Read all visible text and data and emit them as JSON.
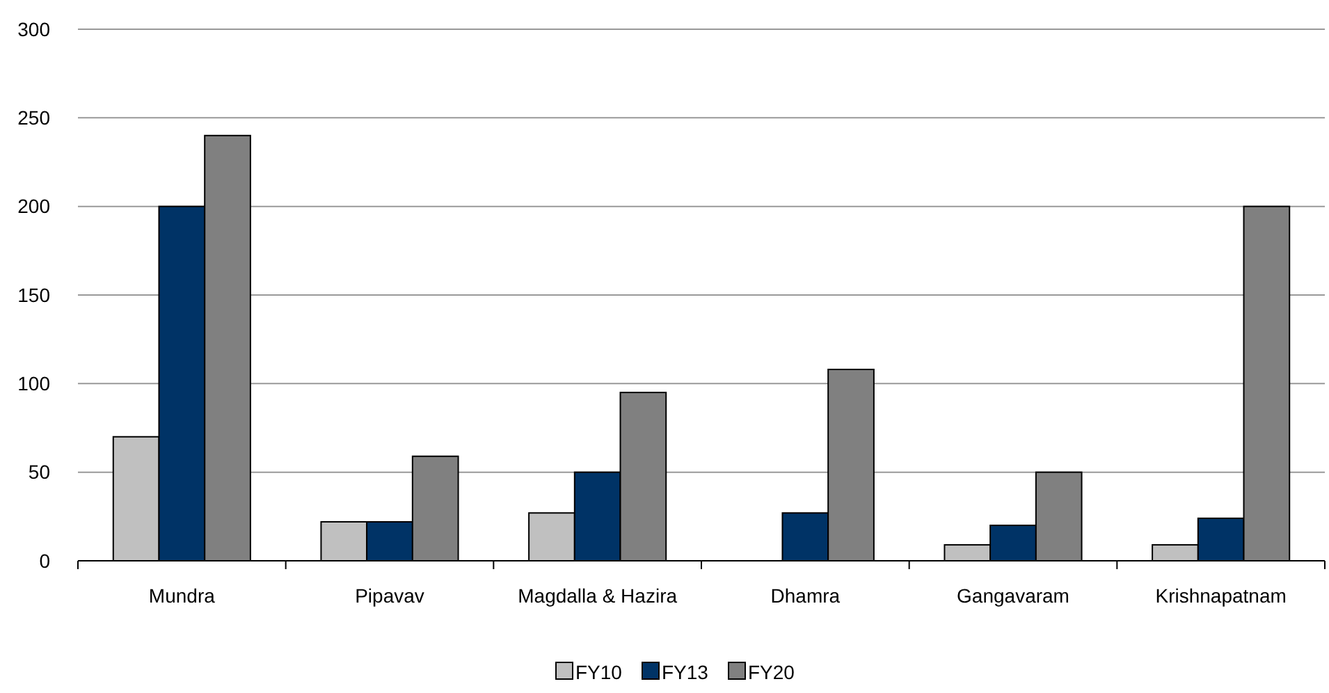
{
  "chart_data": {
    "type": "bar",
    "categories": [
      "Mundra",
      "Pipavav",
      "Magdalla & Hazira",
      "Dhamra",
      "Gangavaram",
      "Krishnapatnam"
    ],
    "series": [
      {
        "name": "FY10",
        "color": "#c0c0c0",
        "values": [
          70,
          22,
          27,
          null,
          9,
          9
        ]
      },
      {
        "name": "FY13",
        "color": "#003366",
        "values": [
          200,
          22,
          50,
          27,
          20,
          24
        ]
      },
      {
        "name": "FY20",
        "color": "#808080",
        "values": [
          240,
          59,
          95,
          108,
          50,
          200
        ]
      }
    ],
    "ylim": [
      0,
      300
    ],
    "yticks": [
      0,
      50,
      100,
      150,
      200,
      250,
      300
    ],
    "grid": "y",
    "legend": "bottom"
  }
}
